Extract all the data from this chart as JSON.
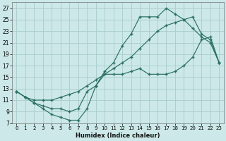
{
  "xlabel": "Humidex (Indice chaleur)",
  "bg_color": "#cce8e8",
  "grid_color": "#aacccc",
  "line_color": "#2a7060",
  "xlim": [
    -0.5,
    23.5
  ],
  "ylim": [
    7,
    28
  ],
  "xticks": [
    0,
    1,
    2,
    3,
    4,
    5,
    6,
    7,
    8,
    9,
    10,
    11,
    12,
    13,
    14,
    15,
    16,
    17,
    18,
    19,
    20,
    21,
    22,
    23
  ],
  "yticks": [
    7,
    9,
    11,
    13,
    15,
    17,
    19,
    21,
    23,
    25,
    27
  ],
  "curve1_x": [
    0,
    1,
    2,
    3,
    4,
    5,
    6,
    7,
    8,
    9,
    10,
    11,
    12,
    13,
    14,
    15,
    16,
    17,
    18,
    19,
    20,
    21,
    22,
    23
  ],
  "curve1_y": [
    12.5,
    11.5,
    11.0,
    11.0,
    11.0,
    11.5,
    12.0,
    12.5,
    13.5,
    14.5,
    15.5,
    16.5,
    17.5,
    18.5,
    20.0,
    21.5,
    23.0,
    24.0,
    24.5,
    25.0,
    25.5,
    22.5,
    21.5,
    17.5
  ],
  "curve2_x": [
    0,
    1,
    2,
    3,
    4,
    5,
    6,
    7,
    8,
    9,
    10,
    11,
    12,
    13,
    14,
    15,
    16,
    17,
    18,
    19,
    20,
    21,
    22,
    23
  ],
  "curve2_y": [
    12.5,
    11.5,
    10.5,
    10.0,
    9.5,
    9.5,
    9.0,
    9.5,
    12.5,
    13.5,
    16.0,
    17.5,
    20.5,
    22.5,
    25.5,
    25.5,
    25.5,
    27.0,
    26.0,
    25.0,
    23.5,
    22.0,
    21.0,
    17.5
  ],
  "curve3_x": [
    0,
    1,
    2,
    3,
    4,
    5,
    6,
    7,
    8,
    9,
    10,
    11,
    12,
    13,
    14,
    15,
    16,
    17,
    18,
    19,
    20,
    21,
    22,
    23
  ],
  "curve3_y": [
    12.5,
    11.5,
    10.5,
    9.5,
    8.5,
    8.0,
    7.5,
    7.5,
    9.5,
    13.5,
    15.5,
    15.5,
    15.5,
    16.0,
    16.5,
    15.5,
    15.5,
    15.5,
    16.0,
    17.0,
    18.5,
    21.5,
    22.0,
    17.5
  ]
}
